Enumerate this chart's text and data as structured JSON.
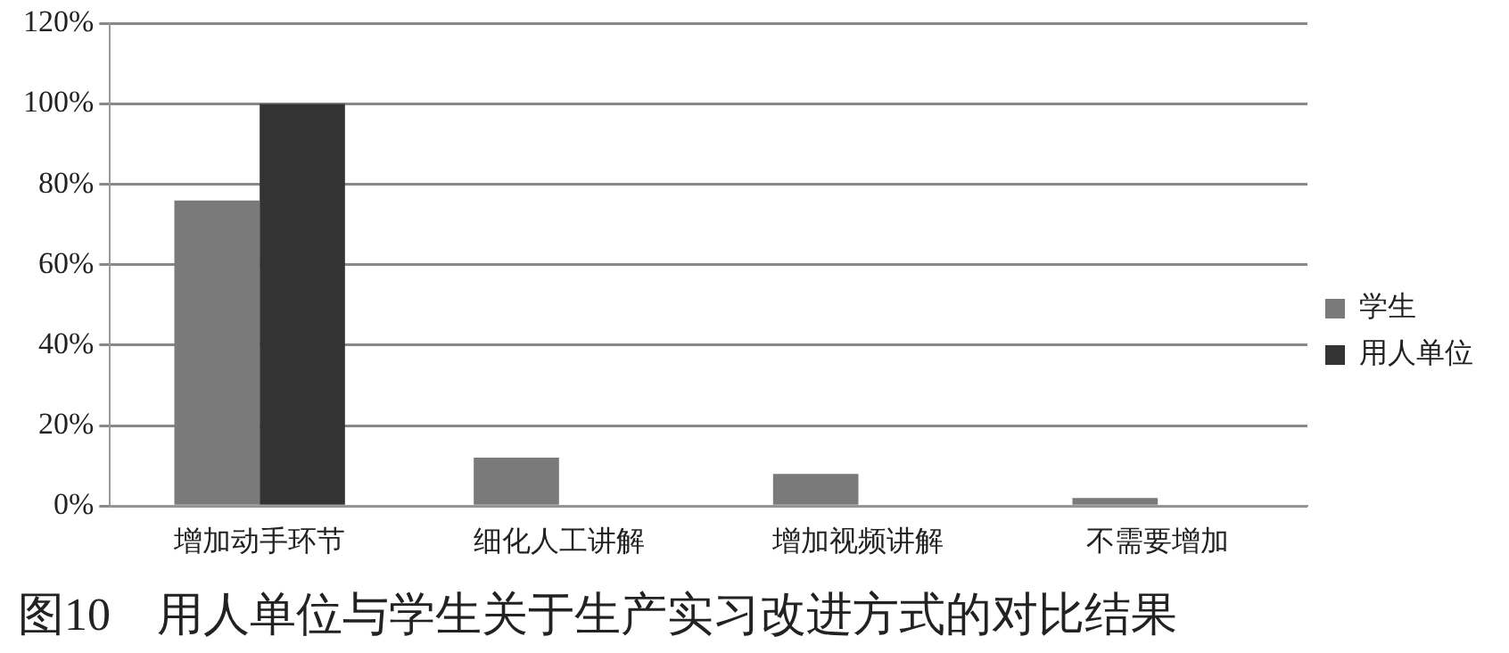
{
  "chart_data": {
    "type": "bar",
    "title": "图10　用人单位与学生关于生产实习改进方式的对比结果",
    "categories": [
      "增加动手环节",
      "细化人工讲解",
      "增加视频讲解",
      "不需要增加"
    ],
    "series": [
      {
        "name": "学生",
        "color": "#7a7a7a",
        "values": [
          76,
          12,
          8,
          2
        ]
      },
      {
        "name": "用人单位",
        "color": "#333333",
        "values": [
          100,
          0,
          0,
          0
        ]
      }
    ],
    "ylim": [
      0,
      120
    ],
    "yticks": [
      {
        "value": 0,
        "label": "0%"
      },
      {
        "value": 20,
        "label": "20%"
      },
      {
        "value": 40,
        "label": "40%"
      },
      {
        "value": 60,
        "label": "60%"
      },
      {
        "value": 80,
        "label": "80%"
      },
      {
        "value": 100,
        "label": "100%"
      },
      {
        "value": 120,
        "label": "120%"
      }
    ],
    "grid": "y",
    "legend": "right"
  }
}
